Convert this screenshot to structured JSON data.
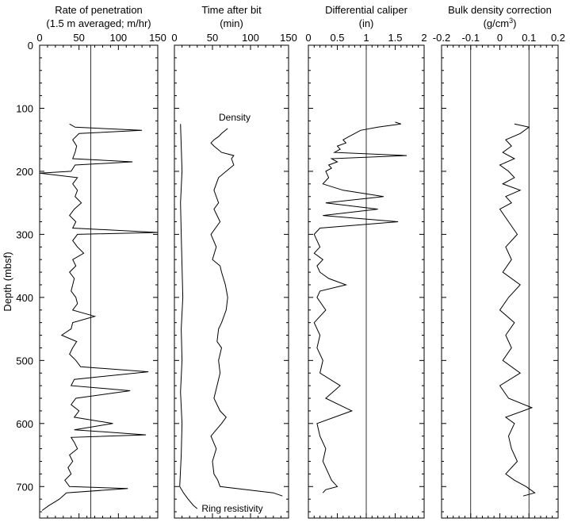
{
  "chart_data": [
    {
      "type": "line",
      "title": "Rate of penetration",
      "subtitle": "(1.5 m averaged; m/hr)",
      "ylabel": "Depth (mbsf)",
      "xlim": [
        0,
        150
      ],
      "ylim": [
        0,
        750
      ],
      "y_inverted": true,
      "xticks": [
        "0",
        "50",
        "100",
        "150"
      ],
      "yticks": [
        "0",
        "100",
        "200",
        "300",
        "400",
        "500",
        "600",
        "700"
      ],
      "reference_lines_x": [
        65
      ],
      "series": [
        {
          "y": [
            125,
            130,
            135,
            140,
            150,
            160,
            170,
            180,
            185,
            190,
            200,
            203,
            210,
            220,
            230,
            240,
            250,
            260,
            270,
            280,
            290,
            297,
            300,
            310,
            320,
            330,
            340,
            350,
            360,
            370,
            380,
            390,
            400,
            410,
            420,
            430,
            440,
            450,
            460,
            470,
            480,
            490,
            500,
            510,
            518,
            530,
            540,
            548,
            560,
            570,
            580,
            590,
            600,
            610,
            618,
            622,
            630,
            640,
            650,
            660,
            670,
            680,
            690,
            700,
            703,
            710,
            720,
            730,
            738
          ],
          "x": [
            38,
            45,
            130,
            50,
            42,
            47,
            45,
            42,
            118,
            45,
            40,
            0,
            48,
            42,
            48,
            45,
            53,
            44,
            38,
            46,
            42,
            150,
            48,
            42,
            48,
            56,
            42,
            46,
            38,
            44,
            42,
            40,
            46,
            48,
            42,
            70,
            42,
            40,
            28,
            47,
            42,
            38,
            46,
            52,
            138,
            44,
            40,
            115,
            46,
            40,
            50,
            44,
            93,
            44,
            135,
            40,
            44,
            48,
            38,
            42,
            36,
            40,
            32,
            38,
            112,
            34,
            25,
            12,
            3
          ]
        }
      ]
    },
    {
      "type": "line",
      "title": "Time after bit",
      "subtitle": "(min)",
      "xlim": [
        0,
        150
      ],
      "ylim": [
        0,
        750
      ],
      "y_inverted": true,
      "xticks": [
        "0",
        "50",
        "100",
        "150"
      ],
      "series": [
        {
          "name": "Density",
          "y": [
            132,
            140,
            145,
            150,
            155,
            160,
            170,
            175,
            180,
            190,
            200,
            210,
            230,
            250,
            260,
            280,
            300,
            320,
            340,
            350,
            360,
            380,
            400,
            420,
            440,
            450,
            470,
            480,
            500,
            520,
            540,
            560,
            580,
            590,
            600,
            610,
            620,
            640,
            660,
            680,
            690,
            700,
            710,
            715
          ],
          "x": [
            70,
            62,
            58,
            52,
            48,
            52,
            62,
            78,
            75,
            78,
            68,
            58,
            52,
            58,
            52,
            60,
            48,
            55,
            50,
            60,
            62,
            67,
            70,
            68,
            62,
            58,
            56,
            62,
            58,
            60,
            56,
            52,
            60,
            68,
            62,
            55,
            48,
            55,
            50,
            52,
            57,
            60,
            130,
            142
          ]
        },
        {
          "name": "Ring resistivity",
          "y": [
            125,
            160,
            200,
            250,
            300,
            350,
            400,
            450,
            500,
            550,
            600,
            650,
            700,
            710,
            720,
            730,
            735
          ],
          "x": [
            8,
            9,
            10,
            8,
            9,
            10,
            11,
            9,
            10,
            8,
            10,
            9,
            7,
            12,
            18,
            25,
            30
          ]
        }
      ],
      "annotations": [
        "Density",
        "Ring resistivity"
      ]
    },
    {
      "type": "line",
      "title": "Differential caliper",
      "subtitle": "(in)",
      "xlim": [
        0,
        2
      ],
      "ylim": [
        0,
        750
      ],
      "y_inverted": true,
      "xticks": [
        "0",
        "0.5",
        "1",
        "1.5",
        "2"
      ],
      "reference_lines_x": [
        1
      ],
      "series": [
        {
          "y": [
            122,
            125,
            130,
            135,
            140,
            145,
            150,
            155,
            160,
            165,
            170,
            175,
            180,
            185,
            190,
            195,
            200,
            210,
            220,
            230,
            240,
            250,
            260,
            270,
            280,
            290,
            300,
            310,
            320,
            330,
            340,
            350,
            360,
            370,
            380,
            390,
            400,
            420,
            440,
            460,
            480,
            500,
            520,
            540,
            560,
            580,
            600,
            620,
            640,
            660,
            680,
            690,
            700,
            705,
            710
          ],
          "x": [
            1.5,
            1.6,
            1.2,
            0.9,
            0.8,
            0.7,
            0.6,
            0.65,
            0.5,
            0.55,
            0.45,
            1.7,
            0.4,
            0.5,
            0.35,
            0.4,
            0.3,
            0.35,
            0.25,
            0.6,
            1.3,
            0.3,
            1.2,
            0.25,
            1.55,
            0.2,
            0.1,
            0.15,
            0.2,
            0.1,
            0.25,
            0.15,
            0.2,
            0.35,
            0.65,
            0.2,
            0.15,
            0.3,
            0.1,
            0.2,
            0.15,
            0.25,
            0.2,
            0.55,
            0.3,
            0.75,
            0.15,
            0.2,
            0.3,
            0.25,
            0.35,
            0.4,
            0.5,
            0.3,
            0.25
          ]
        }
      ]
    },
    {
      "type": "line",
      "title": "Bulk density correction",
      "subtitle": "(g/cm3)",
      "xlim": [
        -0.2,
        0.2
      ],
      "ylim": [
        0,
        750
      ],
      "y_inverted": true,
      "xticks": [
        "-0.2",
        "-0.1",
        "0",
        "0.1",
        "0.2"
      ],
      "reference_lines_x": [
        -0.1,
        0.1
      ],
      "series": [
        {
          "y": [
            125,
            130,
            140,
            150,
            160,
            170,
            180,
            190,
            200,
            210,
            220,
            230,
            240,
            250,
            260,
            280,
            300,
            320,
            340,
            360,
            380,
            400,
            420,
            440,
            460,
            480,
            500,
            520,
            540,
            560,
            575,
            590,
            600,
            620,
            640,
            660,
            680,
            690,
            700,
            710,
            715
          ],
          "x": [
            0.05,
            0.1,
            0.07,
            0.02,
            0.04,
            0.01,
            0.05,
            0.0,
            0.03,
            0.05,
            0.01,
            0.07,
            0.02,
            0.04,
            0.0,
            0.03,
            0.06,
            0.02,
            0.04,
            0.01,
            0.07,
            0.03,
            0.0,
            0.05,
            0.02,
            0.04,
            0.01,
            0.07,
            0.0,
            0.03,
            0.11,
            0.02,
            0.05,
            0.03,
            0.04,
            0.06,
            0.02,
            0.05,
            0.09,
            0.12,
            0.08
          ]
        }
      ]
    }
  ]
}
